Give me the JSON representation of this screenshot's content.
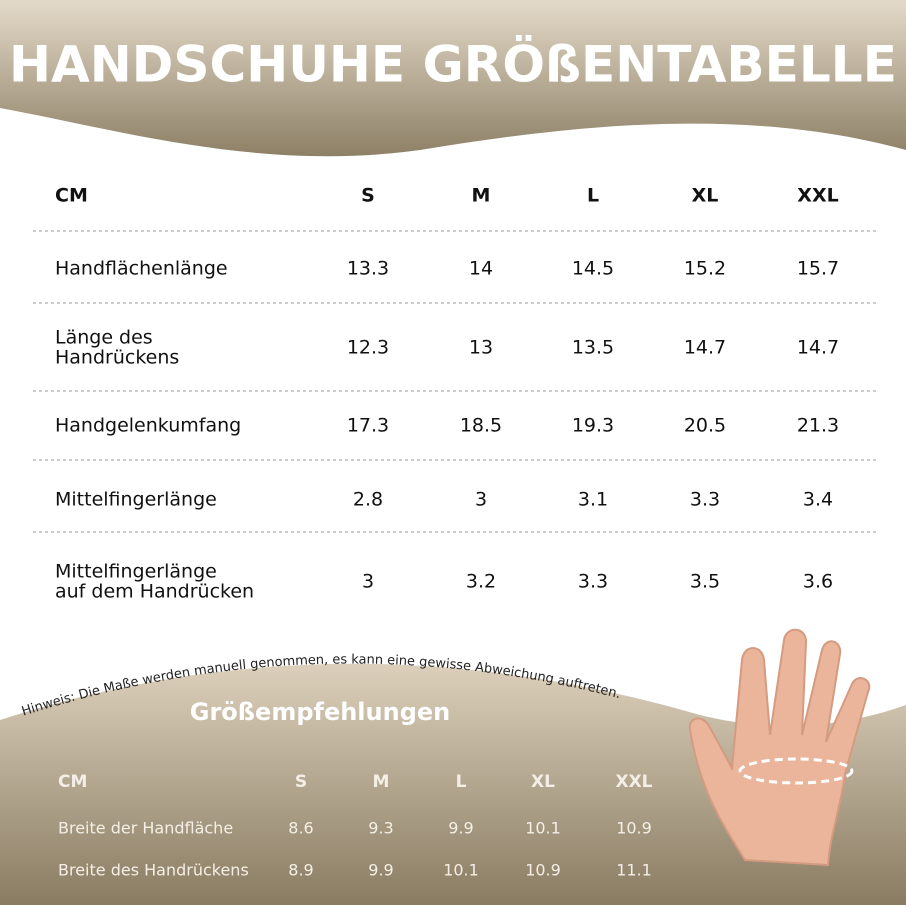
{
  "header": {
    "title": "HANDSCHUHE GRÖßENTABELLE"
  },
  "table": {
    "columns": [
      "CM",
      "S",
      "M",
      "L",
      "XL",
      "XXL"
    ],
    "rows": [
      {
        "label": [
          "Handflächenlänge"
        ],
        "values": [
          13.3,
          14,
          14.5,
          15.2,
          15.7
        ]
      },
      {
        "label": [
          "Länge des",
          "Handrückens"
        ],
        "values": [
          12.3,
          13,
          13.5,
          14.7,
          14.7
        ]
      },
      {
        "label": [
          "Handgelenkumfang"
        ],
        "values": [
          17.3,
          18.5,
          19.3,
          20.5,
          21.3
        ]
      },
      {
        "label": [
          "Mittelfingerlänge"
        ],
        "values": [
          2.8,
          3,
          3.1,
          3.3,
          3.4
        ]
      },
      {
        "label": [
          "Mittelfingerlänge",
          "auf dem Handrücken"
        ],
        "values": [
          3,
          3.2,
          3.3,
          3.5,
          3.6
        ]
      }
    ]
  },
  "note": "Hinweis: Die Maße werden manuell genommen, es kann eine gewisse Abweichung auftreten.",
  "recommendations": {
    "title": "Größempfehlungen",
    "columns": [
      "CM",
      "S",
      "M",
      "L",
      "XL",
      "XXL"
    ],
    "rows": [
      {
        "label": "Breite der Handfläche",
        "values": [
          8.6,
          9.3,
          9.9,
          10.1,
          10.9
        ]
      },
      {
        "label": "Breite des Handrückens",
        "values": [
          8.9,
          9.9,
          10.1,
          10.9,
          11.1
        ]
      }
    ]
  }
}
